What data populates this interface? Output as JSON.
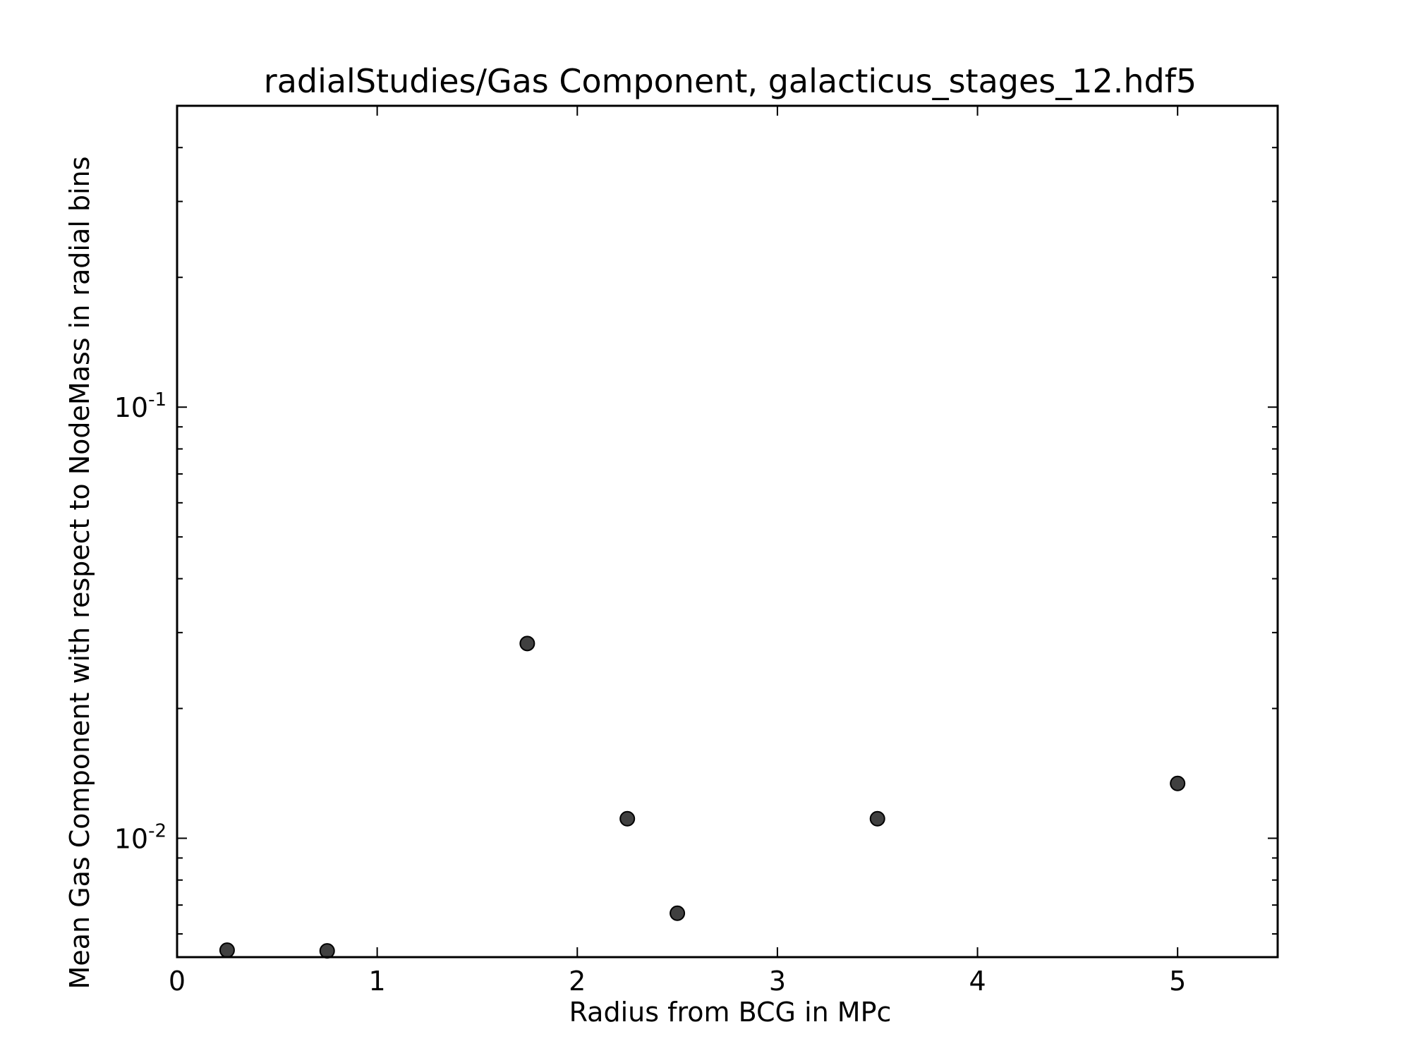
{
  "chart_data": {
    "type": "scatter",
    "title": "radialStudies/Gas Component, galacticus_stages_12.hdf5",
    "xlabel": "Radius from BCG in MPc",
    "ylabel": "Mean Gas Component with respect to NodeMass in radial bins",
    "xlim": [
      0,
      5.5
    ],
    "ylim": [
      0.0053,
      0.5
    ],
    "yscale": "log",
    "grid": false,
    "x_ticks": [
      {
        "value": 0,
        "label": "0"
      },
      {
        "value": 1,
        "label": "1"
      },
      {
        "value": 2,
        "label": "2"
      },
      {
        "value": 3,
        "label": "3"
      },
      {
        "value": 4,
        "label": "4"
      },
      {
        "value": 5,
        "label": "5"
      }
    ],
    "y_ticks": [
      {
        "value": 0.01,
        "base": "10",
        "exponent": "-2"
      },
      {
        "value": 0.1,
        "base": "10",
        "exponent": "-1"
      }
    ],
    "series": [
      {
        "marker_color": "#404040",
        "x": [
          0.25,
          0.75,
          1.75,
          2.25,
          2.5,
          3.5,
          5.0
        ],
        "y": [
          0.0055,
          0.00548,
          0.0283,
          0.0111,
          0.0067,
          0.0111,
          0.0134
        ]
      }
    ]
  }
}
